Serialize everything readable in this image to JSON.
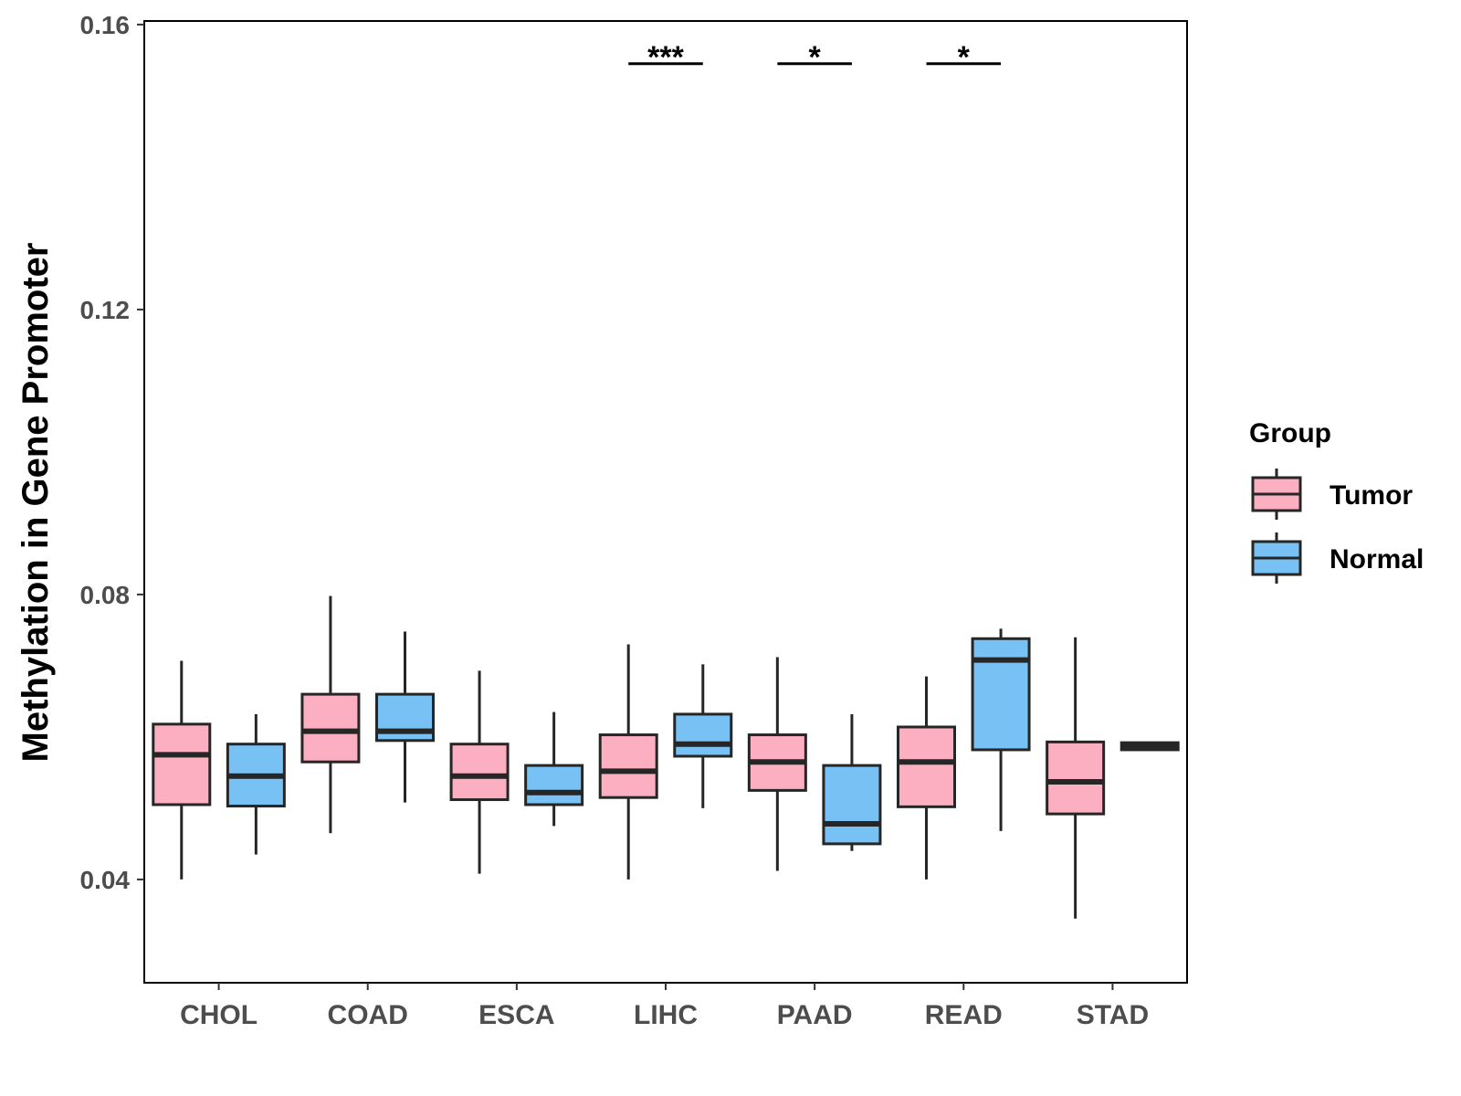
{
  "chart_data": {
    "type": "boxplot",
    "title": "",
    "xlabel": "",
    "ylabel": "Methylation in Gene Promoter",
    "ylim": [
      0.0255,
      0.1605
    ],
    "yticks": [
      0.04,
      0.08,
      0.12,
      0.16
    ],
    "ytick_labels": [
      "0.04",
      "0.08",
      "0.12",
      "0.16"
    ],
    "categories": [
      "CHOL",
      "COAD",
      "ESCA",
      "LIHC",
      "PAAD",
      "READ",
      "STAD"
    ],
    "legend": {
      "title": "Group",
      "position": "right",
      "entries": [
        {
          "name": "Tumor",
          "color": "#FBAFC1"
        },
        {
          "name": "Normal",
          "color": "#78C1F5"
        }
      ]
    },
    "series": [
      {
        "name": "Tumor",
        "color": "#FBAFC1",
        "boxes": [
          {
            "category": "CHOL",
            "min": 0.04,
            "q1": 0.0505,
            "median": 0.0575,
            "q3": 0.0618,
            "max": 0.0707
          },
          {
            "category": "COAD",
            "min": 0.0465,
            "q1": 0.0565,
            "median": 0.0608,
            "q3": 0.066,
            "max": 0.0798
          },
          {
            "category": "ESCA",
            "min": 0.0408,
            "q1": 0.0512,
            "median": 0.0545,
            "q3": 0.059,
            "max": 0.0693
          },
          {
            "category": "LIHC",
            "min": 0.04,
            "q1": 0.0515,
            "median": 0.0552,
            "q3": 0.0603,
            "max": 0.073
          },
          {
            "category": "PAAD",
            "min": 0.0412,
            "q1": 0.0525,
            "median": 0.0565,
            "q3": 0.0603,
            "max": 0.0712
          },
          {
            "category": "READ",
            "min": 0.04,
            "q1": 0.0502,
            "median": 0.0565,
            "q3": 0.0614,
            "max": 0.0685
          },
          {
            "category": "STAD",
            "min": 0.0345,
            "q1": 0.0492,
            "median": 0.0537,
            "q3": 0.0593,
            "max": 0.074
          }
        ]
      },
      {
        "name": "Normal",
        "color": "#78C1F5",
        "boxes": [
          {
            "category": "CHOL",
            "min": 0.0435,
            "q1": 0.0503,
            "median": 0.0545,
            "q3": 0.059,
            "max": 0.0632
          },
          {
            "category": "COAD",
            "min": 0.0508,
            "q1": 0.0595,
            "median": 0.0608,
            "q3": 0.066,
            "max": 0.0748
          },
          {
            "category": "ESCA",
            "min": 0.0475,
            "q1": 0.0505,
            "median": 0.0522,
            "q3": 0.056,
            "max": 0.0635
          },
          {
            "category": "LIHC",
            "min": 0.05,
            "q1": 0.0573,
            "median": 0.059,
            "q3": 0.0632,
            "max": 0.0702
          },
          {
            "category": "PAAD",
            "min": 0.044,
            "q1": 0.045,
            "median": 0.0478,
            "q3": 0.056,
            "max": 0.0632
          },
          {
            "category": "READ",
            "min": 0.0468,
            "q1": 0.0582,
            "median": 0.0708,
            "q3": 0.0738,
            "max": 0.0752
          },
          {
            "category": "STAD",
            "min": 0.0582,
            "q1": 0.0582,
            "median": 0.0587,
            "q3": 0.0592,
            "max": 0.0592
          }
        ]
      }
    ],
    "significance": [
      {
        "category": "LIHC",
        "label": "***",
        "y": 0.1545
      },
      {
        "category": "PAAD",
        "label": "*",
        "y": 0.1545
      },
      {
        "category": "READ",
        "label": "*",
        "y": 0.1545
      }
    ]
  }
}
